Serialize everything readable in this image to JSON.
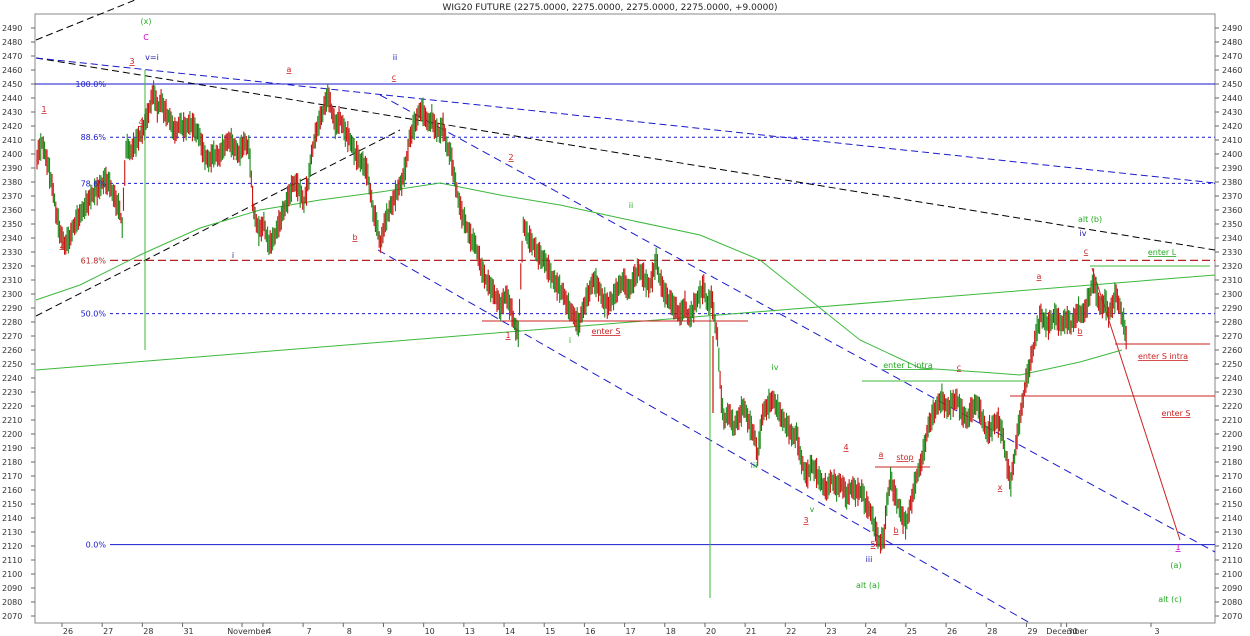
{
  "chart_data": {
    "type": "line",
    "title": "WIG20 FUTURE (2275.0000, 2275.0000, 2275.0000, 2275.0000, +9.0000)",
    "ylim": [
      2065,
      2500
    ],
    "y_tick_step": 10,
    "x_tick_labels": [
      "26",
      "27",
      "28",
      "31",
      "November",
      "4",
      "7",
      "8",
      "9",
      "10",
      "13",
      "14",
      "15",
      "16",
      "17",
      "18",
      "20",
      "21",
      "22",
      "23",
      "24",
      "25",
      "26",
      "28",
      "29",
      "30",
      "December",
      "3"
    ],
    "fib_labels": [
      {
        "label": "100.0%",
        "value": 2450
      },
      {
        "label": "88.6%",
        "value": 2412
      },
      {
        "label": "78.6%",
        "value": 2379
      },
      {
        "label": "61.8%",
        "value": 2324
      },
      {
        "label": "50.0%",
        "value": 2286
      },
      {
        "label": "0.0%",
        "value": 2121
      }
    ],
    "series": [
      {
        "values": [
          [
            0,
            2398
          ],
          [
            4,
            2408
          ],
          [
            8,
            2395
          ],
          [
            12,
            2378
          ],
          [
            15,
            2360
          ],
          [
            18,
            2345
          ],
          [
            22,
            2335
          ],
          [
            26,
            2340
          ],
          [
            30,
            2350
          ],
          [
            34,
            2356
          ],
          [
            38,
            2362
          ],
          [
            42,
            2368
          ],
          [
            46,
            2373
          ],
          [
            50,
            2376
          ],
          [
            54,
            2382
          ],
          [
            58,
            2378
          ],
          [
            62,
            2368
          ],
          [
            66,
            2360
          ],
          [
            68,
            2348
          ],
          [
            71,
            2405
          ],
          [
            75,
            2402
          ],
          [
            80,
            2410
          ],
          [
            85,
            2418
          ],
          [
            89,
            2430
          ],
          [
            93,
            2445
          ],
          [
            96,
            2432
          ],
          [
            99,
            2438
          ],
          [
            102,
            2430
          ],
          [
            106,
            2425
          ],
          [
            110,
            2415
          ],
          [
            114,
            2422
          ],
          [
            118,
            2418
          ],
          [
            122,
            2422
          ],
          [
            126,
            2418
          ],
          [
            130,
            2412
          ],
          [
            133,
            2400
          ],
          [
            137,
            2395
          ],
          [
            141,
            2400
          ],
          [
            145,
            2398
          ],
          [
            149,
            2405
          ],
          [
            153,
            2410
          ],
          [
            157,
            2405
          ],
          [
            161,
            2400
          ],
          [
            165,
            2408
          ],
          [
            169,
            2405
          ],
          [
            173,
            2358
          ],
          [
            177,
            2345
          ],
          [
            181,
            2350
          ],
          [
            185,
            2335
          ],
          [
            189,
            2340
          ],
          [
            193,
            2350
          ],
          [
            197,
            2360
          ],
          [
            201,
            2370
          ],
          [
            205,
            2380
          ],
          [
            209,
            2375
          ],
          [
            213,
            2365
          ],
          [
            216,
            2378
          ],
          [
            220,
            2405
          ],
          [
            224,
            2420
          ],
          [
            228,
            2430
          ],
          [
            232,
            2442
          ],
          [
            235,
            2432
          ],
          [
            238,
            2420
          ],
          [
            242,
            2425
          ],
          [
            246,
            2415
          ],
          [
            250,
            2410
          ],
          [
            254,
            2400
          ],
          [
            258,
            2395
          ],
          [
            261,
            2392
          ],
          [
            264,
            2385
          ],
          [
            268,
            2360
          ],
          [
            271,
            2350
          ],
          [
            274,
            2335
          ],
          [
            276,
            2345
          ],
          [
            279,
            2355
          ],
          [
            282,
            2362
          ],
          [
            285,
            2368
          ],
          [
            288,
            2375
          ],
          [
            291,
            2380
          ],
          [
            294,
            2390
          ],
          [
            297,
            2410
          ],
          [
            300,
            2418
          ],
          [
            303,
            2425
          ],
          [
            306,
            2432
          ],
          [
            309,
            2428
          ],
          [
            312,
            2422
          ],
          [
            315,
            2425
          ],
          [
            318,
            2418
          ],
          [
            321,
            2415
          ],
          [
            324,
            2420
          ],
          [
            327,
            2405
          ],
          [
            330,
            2400
          ],
          [
            334,
            2378
          ],
          [
            338,
            2360
          ],
          [
            342,
            2350
          ],
          [
            346,
            2340
          ],
          [
            350,
            2335
          ],
          [
            354,
            2320
          ],
          [
            358,
            2310
          ],
          [
            362,
            2305
          ],
          [
            366,
            2298
          ],
          [
            370,
            2290
          ],
          [
            374,
            2300
          ],
          [
            378,
            2290
          ],
          [
            382,
            2275
          ],
          [
            384,
            2272
          ],
          [
            388,
            2350
          ],
          [
            392,
            2340
          ],
          [
            396,
            2335
          ],
          [
            400,
            2328
          ],
          [
            404,
            2325
          ],
          [
            408,
            2318
          ],
          [
            412,
            2310
          ],
          [
            416,
            2305
          ],
          [
            420,
            2300
          ],
          [
            424,
            2290
          ],
          [
            428,
            2285
          ],
          [
            432,
            2278
          ],
          [
            436,
            2290
          ],
          [
            440,
            2300
          ],
          [
            444,
            2310
          ],
          [
            448,
            2305
          ],
          [
            452,
            2295
          ],
          [
            456,
            2292
          ],
          [
            460,
            2298
          ],
          [
            464,
            2305
          ],
          [
            468,
            2310
          ],
          [
            472,
            2302
          ],
          [
            476,
            2310
          ],
          [
            480,
            2318
          ],
          [
            484,
            2312
          ],
          [
            488,
            2305
          ],
          [
            491,
            2312
          ],
          [
            494,
            2325
          ],
          [
            497,
            2310
          ],
          [
            501,
            2300
          ],
          [
            505,
            2295
          ],
          [
            509,
            2290
          ],
          [
            513,
            2285
          ],
          [
            517,
            2292
          ],
          [
            520,
            2282
          ],
          [
            523,
            2288
          ],
          [
            526,
            2295
          ],
          [
            529,
            2300
          ],
          [
            532,
            2305
          ],
          [
            535,
            2292
          ],
          [
            538,
            2298
          ],
          [
            541,
            2280
          ],
          [
            543,
            2268
          ],
          [
            546,
            2225
          ],
          [
            548,
            2210
          ],
          [
            552,
            2215
          ],
          [
            556,
            2205
          ],
          [
            560,
            2212
          ],
          [
            564,
            2220
          ],
          [
            568,
            2208
          ],
          [
            572,
            2200
          ],
          [
            575,
            2185
          ],
          [
            579,
            2215
          ],
          [
            583,
            2220
          ],
          [
            587,
            2225
          ],
          [
            591,
            2218
          ],
          [
            595,
            2210
          ],
          [
            599,
            2205
          ],
          [
            603,
            2198
          ],
          [
            606,
            2200
          ],
          [
            610,
            2180
          ],
          [
            614,
            2170
          ],
          [
            618,
            2178
          ],
          [
            622,
            2172
          ],
          [
            626,
            2165
          ],
          [
            630,
            2160
          ],
          [
            634,
            2168
          ],
          [
            638,
            2162
          ],
          [
            642,
            2165
          ],
          [
            646,
            2155
          ],
          [
            650,
            2162
          ],
          [
            654,
            2158
          ],
          [
            658,
            2160
          ],
          [
            661,
            2150
          ],
          [
            665,
            2145
          ],
          [
            668,
            2135
          ],
          [
            670,
            2128
          ],
          [
            673,
            2122
          ],
          [
            676,
            2128
          ],
          [
            678,
            2150
          ],
          [
            681,
            2168
          ],
          [
            684,
            2158
          ],
          [
            687,
            2150
          ],
          [
            690,
            2142
          ],
          [
            693,
            2135
          ],
          [
            696,
            2145
          ],
          [
            699,
            2158
          ],
          [
            702,
            2170
          ],
          [
            705,
            2178
          ],
          [
            708,
            2190
          ],
          [
            711,
            2205
          ],
          [
            714,
            2212
          ],
          [
            718,
            2220
          ],
          [
            722,
            2225
          ],
          [
            726,
            2218
          ],
          [
            730,
            2222
          ],
          [
            734,
            2225
          ],
          [
            738,
            2215
          ],
          [
            742,
            2210
          ],
          [
            746,
            2218
          ],
          [
            750,
            2222
          ],
          [
            754,
            2212
          ],
          [
            758,
            2200
          ],
          [
            762,
            2205
          ],
          [
            766,
            2210
          ],
          [
            770,
            2202
          ],
          [
            774,
            2178
          ],
          [
            777,
            2165
          ],
          [
            780,
            2185
          ],
          [
            783,
            2205
          ],
          [
            786,
            2220
          ],
          [
            789,
            2238
          ],
          [
            792,
            2248
          ],
          [
            795,
            2262
          ],
          [
            798,
            2275
          ],
          [
            801,
            2285
          ],
          [
            804,
            2280
          ],
          [
            807,
            2278
          ],
          [
            810,
            2282
          ],
          [
            813,
            2285
          ],
          [
            816,
            2278
          ],
          [
            819,
            2280
          ],
          [
            822,
            2282
          ],
          [
            825,
            2278
          ],
          [
            828,
            2283
          ],
          [
            831,
            2288
          ],
          [
            834,
            2285
          ],
          [
            837,
            2290
          ],
          [
            840,
            2300
          ],
          [
            843,
            2310
          ],
          [
            846,
            2298
          ],
          [
            849,
            2290
          ],
          [
            852,
            2295
          ],
          [
            855,
            2285
          ],
          [
            858,
            2292
          ],
          [
            861,
            2300
          ],
          [
            864,
            2290
          ],
          [
            867,
            2280
          ],
          [
            870,
            2262
          ]
        ]
      }
    ]
  },
  "annotations": {
    "wave_labels": [
      {
        "t": "(x)",
        "c": "#22aa22"
      },
      {
        "t": "C",
        "c": "#cc00cc"
      },
      {
        "t": "v=i",
        "c": "#1a1aaa"
      },
      {
        "t": "3",
        "c": "#cc2222"
      },
      {
        "t": "4",
        "c": "#cc2222"
      },
      {
        "t": "1",
        "c": "#cc2222"
      },
      {
        "t": "2",
        "c": "#cc2222"
      },
      {
        "t": "a",
        "c": "#cc2222"
      },
      {
        "t": "b",
        "c": "#cc2222"
      },
      {
        "t": "c",
        "c": "#cc2222"
      },
      {
        "t": "i",
        "c": "#1a1aaa"
      },
      {
        "t": "ii",
        "c": "#1a1aaa"
      },
      {
        "t": "iii",
        "c": "#1a1aaa"
      },
      {
        "t": "iv",
        "c": "#1a1aaa"
      },
      {
        "t": "2",
        "c": "#cc2222"
      },
      {
        "t": "1",
        "c": "#cc2222"
      },
      {
        "t": "i",
        "c": "#22aa22"
      },
      {
        "t": "ii",
        "c": "#22aa22"
      },
      {
        "t": "iii",
        "c": "#22aa22"
      },
      {
        "t": "iv",
        "c": "#22aa22"
      },
      {
        "t": "v",
        "c": "#22aa22"
      },
      {
        "t": "3",
        "c": "#cc2222"
      },
      {
        "t": "4",
        "c": "#cc2222"
      },
      {
        "t": "5",
        "c": "#cc2222"
      },
      {
        "t": "a",
        "c": "#cc2222"
      },
      {
        "t": "b",
        "c": "#cc2222"
      },
      {
        "t": "c",
        "c": "#cc2222"
      },
      {
        "t": "x",
        "c": "#cc2222"
      },
      {
        "t": "a",
        "c": "#cc2222"
      },
      {
        "t": "b",
        "c": "#cc2222"
      },
      {
        "t": "c",
        "c": "#cc2222"
      },
      {
        "t": "1",
        "c": "#cc00cc"
      },
      {
        "t": "(a)",
        "c": "#22aa22"
      },
      {
        "t": "alt (a)",
        "c": "#22aa22"
      },
      {
        "t": "alt (b)",
        "c": "#22aa22"
      },
      {
        "t": "alt (c)",
        "c": "#22aa22"
      }
    ],
    "signals": [
      {
        "t": "enter S",
        "c": "#cc2222"
      },
      {
        "t": "enter L intra",
        "c": "#22aa22"
      },
      {
        "t": "stop",
        "c": "#cc2222"
      },
      {
        "t": "enter L",
        "c": "#22aa22"
      },
      {
        "t": "enter S intra",
        "c": "#cc2222"
      },
      {
        "t": "enter S",
        "c": "#cc2222"
      }
    ]
  },
  "colors": {
    "background": "#ffffff",
    "plot_border": "#888888",
    "axis_text": "#333333",
    "candle_up": "#1b8a1b",
    "candle_down": "#cc1111",
    "fib_blue": "#1a1acc",
    "channel_blue": "#1a1acc",
    "trend_black": "#000000",
    "ma_green": "#3cb83c",
    "signal_red": "#cc2222",
    "signal_green": "#22aa22"
  }
}
